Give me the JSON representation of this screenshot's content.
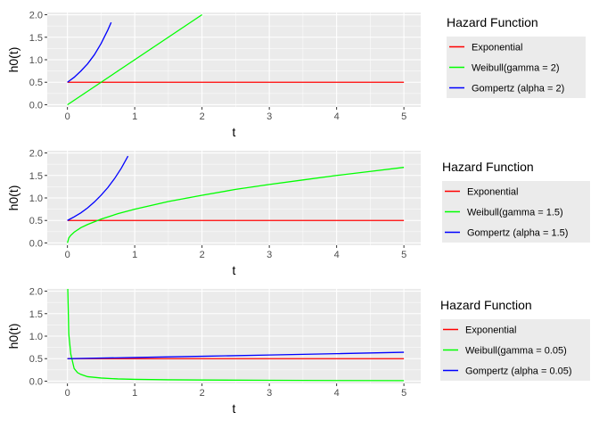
{
  "chart_data": [
    {
      "type": "line",
      "xlabel": "t",
      "ylabel": "h0(t)",
      "xlim": [
        -0.3,
        5.25
      ],
      "ylim": [
        -0.05,
        2.05
      ],
      "x_ticks": [
        0,
        1,
        2,
        3,
        4,
        5
      ],
      "y_ticks": [
        0.0,
        0.5,
        1.0,
        1.5,
        2.0
      ],
      "y_tick_labels": [
        "0.0",
        "0.5",
        "1.0",
        "1.5",
        "2.0"
      ],
      "grid": true,
      "legend": {
        "title": "Hazard Function",
        "placement": "right",
        "entries": [
          "Exponential",
          "Weibull(gamma = 2)",
          "Gompertz (alpha = 2)"
        ]
      },
      "series": [
        {
          "name": "Exponential",
          "color": "#ff0000",
          "x": [
            0,
            5
          ],
          "y": [
            0.5,
            0.5
          ]
        },
        {
          "name": "Weibull(gamma = 2)",
          "color": "#00ff00",
          "x": [
            0,
            2
          ],
          "y": [
            0.0,
            2.0
          ]
        },
        {
          "name": "Gompertz (alpha = 2)",
          "color": "#0000ff",
          "x": [
            0,
            0.1,
            0.2,
            0.3,
            0.4,
            0.5,
            0.6,
            0.65
          ],
          "y": [
            0.5,
            0.61,
            0.75,
            0.91,
            1.11,
            1.36,
            1.66,
            1.83
          ]
        }
      ]
    },
    {
      "type": "line",
      "xlabel": "t",
      "ylabel": "h0(t)",
      "xlim": [
        -0.3,
        5.25
      ],
      "ylim": [
        -0.05,
        2.05
      ],
      "x_ticks": [
        0,
        1,
        2,
        3,
        4,
        5
      ],
      "y_ticks": [
        0.0,
        0.5,
        1.0,
        1.5,
        2.0
      ],
      "y_tick_labels": [
        "0.0",
        "0.5",
        "1.0",
        "1.5",
        "2.0"
      ],
      "grid": true,
      "legend": {
        "title": "Hazard Function",
        "placement": "right",
        "entries": [
          "Exponential",
          "Weibull(gamma = 1.5)",
          "Gompertz (alpha = 1.5)"
        ]
      },
      "series": [
        {
          "name": "Exponential",
          "color": "#ff0000",
          "x": [
            0,
            5
          ],
          "y": [
            0.5,
            0.5
          ]
        },
        {
          "name": "Weibull(gamma = 1.5)",
          "color": "#00ff00",
          "x": [
            0,
            0.02,
            0.05,
            0.1,
            0.2,
            0.3,
            0.5,
            0.75,
            1,
            1.5,
            2,
            2.5,
            3,
            3.5,
            4,
            4.5,
            5
          ],
          "y": [
            0,
            0.11,
            0.17,
            0.24,
            0.34,
            0.41,
            0.53,
            0.65,
            0.75,
            0.92,
            1.06,
            1.19,
            1.3,
            1.4,
            1.5,
            1.59,
            1.68
          ]
        },
        {
          "name": "Gompertz (alpha = 1.5)",
          "color": "#0000ff",
          "x": [
            0,
            0.1,
            0.2,
            0.3,
            0.4,
            0.5,
            0.6,
            0.7,
            0.8,
            0.9
          ],
          "y": [
            0.5,
            0.58,
            0.67,
            0.78,
            0.91,
            1.06,
            1.23,
            1.43,
            1.66,
            1.93
          ]
        }
      ]
    },
    {
      "type": "line",
      "xlabel": "t",
      "ylabel": "h0(t)",
      "xlim": [
        -0.3,
        5.25
      ],
      "ylim": [
        -0.05,
        2.05
      ],
      "x_ticks": [
        0,
        1,
        2,
        3,
        4,
        5
      ],
      "y_ticks": [
        0.0,
        0.5,
        1.0,
        1.5,
        2.0
      ],
      "y_tick_labels": [
        "0.0",
        "0.5",
        "1.0",
        "1.5",
        "2.0"
      ],
      "grid": true,
      "legend": {
        "title": "Hazard Function",
        "placement": "right",
        "entries": [
          "Exponential",
          "Weibull(gamma = 0.05)",
          "Gompertz (alpha = 0.05)"
        ]
      },
      "series": [
        {
          "name": "Exponential",
          "color": "#ff0000",
          "x": [
            0,
            5
          ],
          "y": [
            0.5,
            0.5
          ]
        },
        {
          "name": "Weibull(gamma = 0.05)",
          "color": "#00ff00",
          "x": [
            0.005,
            0.02,
            0.05,
            0.1,
            0.15,
            0.2,
            0.3,
            0.5,
            0.75,
            1,
            1.5,
            2,
            3,
            4,
            5
          ],
          "y": [
            2.05,
            1.05,
            0.6,
            0.28,
            0.19,
            0.15,
            0.1,
            0.07,
            0.05,
            0.04,
            0.03,
            0.025,
            0.02,
            0.015,
            0.012
          ]
        },
        {
          "name": "Gompertz (alpha = 0.05)",
          "color": "#0000ff",
          "x": [
            0,
            1,
            2,
            3,
            4,
            5
          ],
          "y": [
            0.5,
            0.526,
            0.553,
            0.581,
            0.611,
            0.642
          ]
        }
      ]
    }
  ]
}
